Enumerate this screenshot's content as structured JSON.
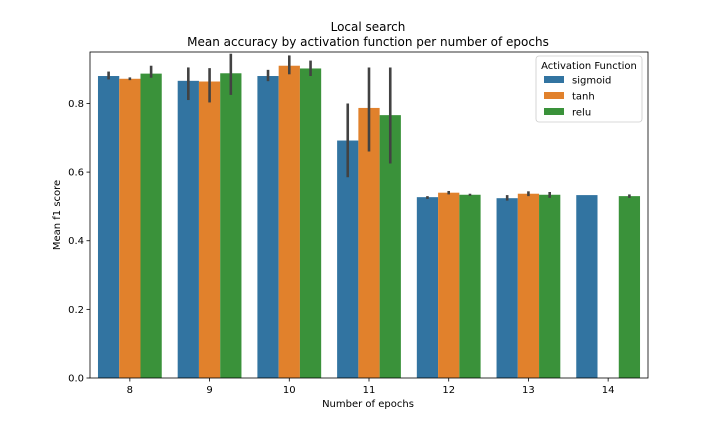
{
  "chart_data": {
    "type": "bar",
    "title": "Local search",
    "subtitle": "Mean accuracy by activation function per number of epochs",
    "xlabel": "Number of epochs",
    "ylabel": "Mean f1 score",
    "ylim": [
      0.0,
      0.95
    ],
    "yticks": [
      0.0,
      0.2,
      0.4,
      0.6,
      0.8
    ],
    "ytick_labels": [
      "0.0",
      "0.2",
      "0.4",
      "0.6",
      "0.8"
    ],
    "categories": [
      "8",
      "9",
      "10",
      "11",
      "12",
      "13",
      "14"
    ],
    "grid": false,
    "legend": {
      "title": "Activation Function",
      "position": "top-right"
    },
    "series": [
      {
        "name": "sigmoid",
        "color": "#3274a1",
        "values": [
          0.88,
          0.866,
          0.88,
          0.692,
          0.527,
          0.524,
          0.533
        ],
        "ci_low": [
          0.87,
          0.81,
          0.865,
          0.585,
          0.522,
          0.517,
          null
        ],
        "ci_high": [
          0.893,
          0.905,
          0.898,
          0.8,
          0.53,
          0.533,
          null
        ]
      },
      {
        "name": "tanh",
        "color": "#e1812c",
        "values": [
          0.872,
          0.864,
          0.91,
          0.787,
          0.54,
          0.537,
          null
        ],
        "ci_low": [
          0.868,
          0.803,
          0.885,
          0.66,
          0.535,
          0.53,
          null
        ],
        "ci_high": [
          0.876,
          0.903,
          0.94,
          0.905,
          0.545,
          0.544,
          null
        ]
      },
      {
        "name": "relu",
        "color": "#3a923a",
        "values": [
          0.887,
          0.888,
          0.902,
          0.766,
          0.534,
          0.534,
          0.53
        ],
        "ci_low": [
          0.875,
          0.825,
          0.88,
          0.625,
          0.531,
          0.525,
          0.525
        ],
        "ci_high": [
          0.91,
          0.945,
          0.925,
          0.905,
          0.537,
          0.542,
          0.535
        ]
      }
    ]
  }
}
